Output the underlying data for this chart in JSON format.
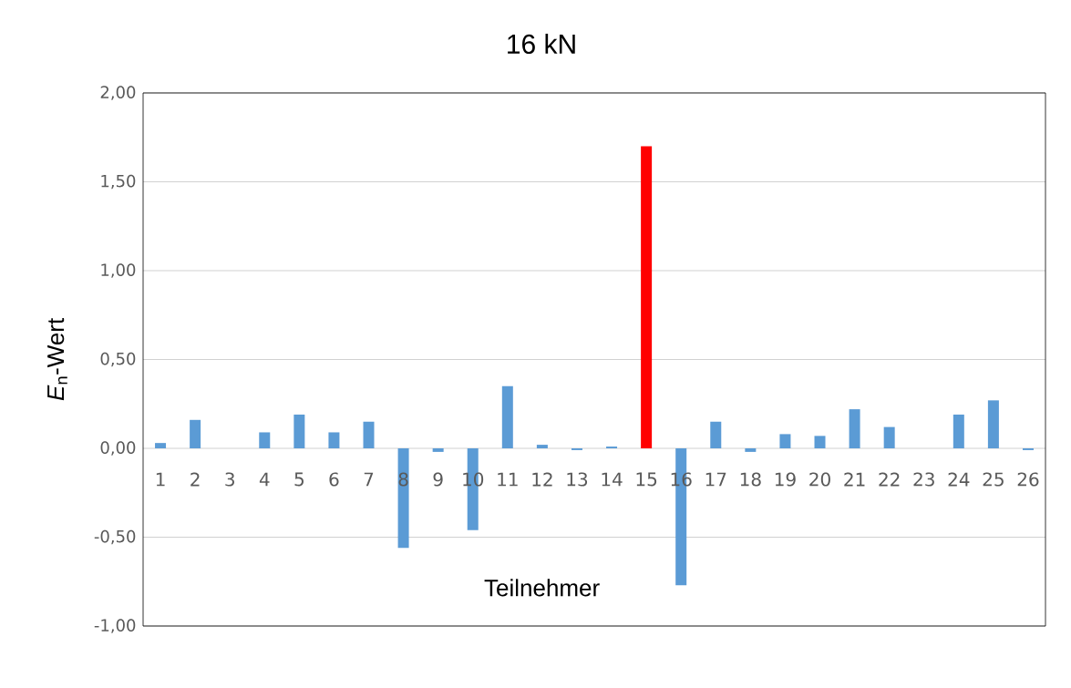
{
  "chart_data": {
    "type": "bar",
    "title": "16 kN",
    "xlabel": "Teilnehmer",
    "ylabel": "*E*$_{n}$-Wert",
    "categories": [
      "1",
      "2",
      "3",
      "4",
      "5",
      "6",
      "7",
      "8",
      "9",
      "10",
      "11",
      "12",
      "13",
      "14",
      "15",
      "16",
      "17",
      "18",
      "19",
      "20",
      "21",
      "22",
      "23",
      "24",
      "25",
      "26"
    ],
    "values": [
      0.03,
      0.16,
      null,
      0.09,
      0.19,
      0.09,
      0.15,
      -0.56,
      -0.02,
      -0.46,
      0.35,
      0.02,
      -0.01,
      0.01,
      1.7,
      -0.77,
      0.15,
      -0.02,
      0.08,
      0.07,
      0.22,
      0.12,
      null,
      0.19,
      0.27,
      -0.01
    ],
    "colors": [
      "#5b9bd5",
      "#5b9bd5",
      "#5b9bd5",
      "#5b9bd5",
      "#5b9bd5",
      "#5b9bd5",
      "#5b9bd5",
      "#5b9bd5",
      "#5b9bd5",
      "#5b9bd5",
      "#5b9bd5",
      "#5b9bd5",
      "#5b9bd5",
      "#5b9bd5",
      "#ff0000",
      "#5b9bd5",
      "#5b9bd5",
      "#5b9bd5",
      "#5b9bd5",
      "#5b9bd5",
      "#5b9bd5",
      "#5b9bd5",
      "#5b9bd5",
      "#5b9bd5",
      "#5b9bd5",
      "#5b9bd5"
    ],
    "ylim": [
      -1,
      2
    ],
    "yticks": [
      {
        "value": -1,
        "label": "-1,00"
      },
      {
        "value": -0.5,
        "label": "-0,50"
      },
      {
        "value": 0,
        "label": "0,00"
      },
      {
        "value": 0.5,
        "label": "0,50"
      },
      {
        "value": 1,
        "label": "1,00"
      },
      {
        "value": 1.5,
        "label": "1,50"
      },
      {
        "value": 2,
        "label": "2,00"
      }
    ],
    "grid": "y"
  }
}
